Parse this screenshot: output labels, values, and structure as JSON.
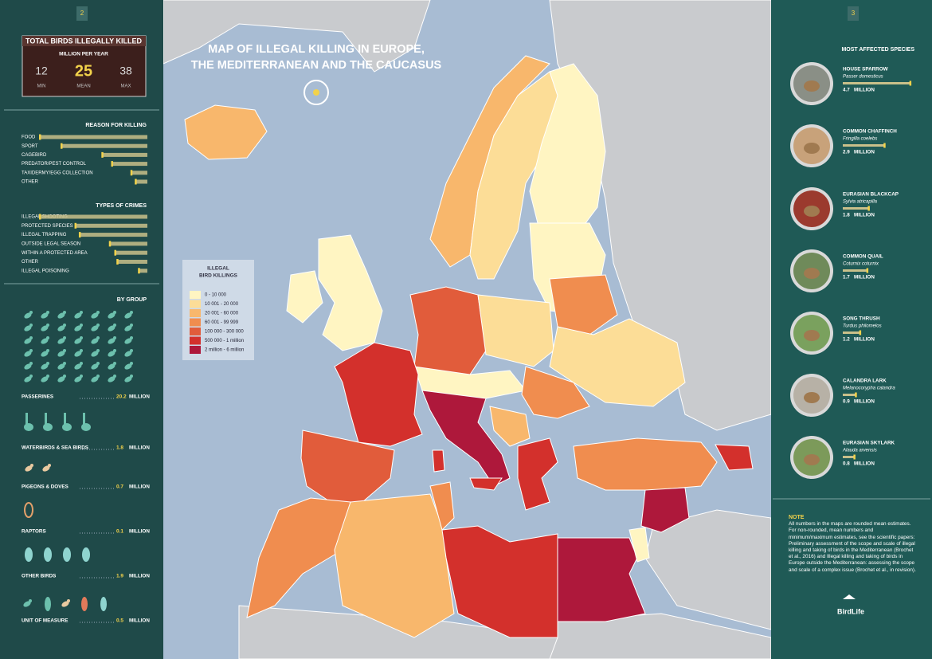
{
  "left_panel": {
    "page_number": "2",
    "total": {
      "title": "TOTAL BIRDS ILLEGALLY KILLED",
      "subtitle": "MILLION PER YEAR",
      "stats": [
        {
          "value": 12,
          "label": "MIN"
        },
        {
          "value": 25,
          "label": "MEAN"
        },
        {
          "value": 38,
          "label": "MAX"
        }
      ]
    },
    "reasons": {
      "title": "REASON FOR KILLING",
      "items": [
        {
          "label": "FOOD",
          "value": 100
        },
        {
          "label": "SPORT",
          "value": 80
        },
        {
          "label": "CAGEBIRD",
          "value": 42
        },
        {
          "label": "PREDATOR/PEST CONTROL",
          "value": 33
        },
        {
          "label": "TAXIDERMY/EGG COLLECTION",
          "value": 15
        },
        {
          "label": "OTHER",
          "value": 11
        }
      ]
    },
    "crimes": {
      "title": "TYPES OF CRIMES",
      "items": [
        {
          "label": "ILLEGAL SHOOTING",
          "value": 100
        },
        {
          "label": "PROTECTED SPECIES",
          "value": 67
        },
        {
          "label": "ILLEGAL TRAPPING",
          "value": 63
        },
        {
          "label": "OUTSIDE LEGAL SEASON",
          "value": 35
        },
        {
          "label": "WITHIN A PROTECTED AREA",
          "value": 30
        },
        {
          "label": "OTHER",
          "value": 28
        },
        {
          "label": "ILLEGAL POISONING",
          "value": 8
        }
      ]
    },
    "by_group": {
      "title": "BY GROUP",
      "unit": "MILLION",
      "groups": [
        {
          "label": "PASSERINES",
          "value": 20.2
        },
        {
          "label": "WATERBIRDS & SEA BIRDS",
          "value": 1.8
        },
        {
          "label": "PIGEONS & DOVES",
          "value": 0.7
        },
        {
          "label": "RAPTORS",
          "value": 0.1
        },
        {
          "label": "OTHER BIRDS",
          "value": 1.9
        },
        {
          "label": "UNIT OF MEASURE",
          "value": 0.5
        }
      ]
    }
  },
  "map": {
    "title": [
      "MAP OF ILLEGAL KILLING IN EUROPE,",
      "THE MEDITERRANEAN AND THE CAUCASUS"
    ],
    "legend": {
      "title": [
        "ILLEGAL",
        "BIRD KILLINGS"
      ],
      "items": [
        {
          "label": "0 - 10 000",
          "color": "#fff5c2"
        },
        {
          "label": "10 001 - 20 000",
          "color": "#fcdd97"
        },
        {
          "label": "20 001 - 60 000",
          "color": "#f8b76c"
        },
        {
          "label": "60 001 - 99 999",
          "color": "#f08d4f"
        },
        {
          "label": "100 000 - 300 000",
          "color": "#e15c3b"
        },
        {
          "label": "500 000 - 1 million",
          "color": "#d3302c"
        },
        {
          "label": "2 million - 6 million",
          "color": "#ae183b"
        }
      ]
    }
  },
  "right_panel": {
    "page_number": "3",
    "title": "MOST AFFECTED SPECIES",
    "unit": "MILLION",
    "species": [
      {
        "name": "HOUSE SPARROW",
        "latin": "Passer domesticus",
        "value": 4.7
      },
      {
        "name": "COMMON CHAFFINCH",
        "latin": "Fringilla coelebs",
        "value": 2.9
      },
      {
        "name": "EURASIAN BLACKCAP",
        "latin": "Sylvia atricapilla",
        "value": 1.8
      },
      {
        "name": "COMMON QUAIL",
        "latin": "Coturnix coturnix",
        "value": 1.7
      },
      {
        "name": "SONG THRUSH",
        "latin": "Turdus philomelos",
        "value": 1.2
      },
      {
        "name": "CALANDRA LARK",
        "latin": "Melanocorypha calandra",
        "value": 0.9
      },
      {
        "name": "EURASIAN SKYLARK",
        "latin": "Alauda arvensis",
        "value": 0.8
      }
    ],
    "note": {
      "title": "NOTE",
      "text": "All numbers in the maps are rounded mean estimates. For non-rounded, mean numbers and minimum/maximum estimates, see the scientific papers: Preliminary assessment of the scope and scale of illegal killing and taking of birds in the Mediterranean (Brochet et al., 2016) and Illegal killing and taking of birds in Europe outside the Mediterranean: assessing the scope and scale of a complex issue (Brochet et al., in revision)."
    },
    "logo": "BirdLife"
  }
}
